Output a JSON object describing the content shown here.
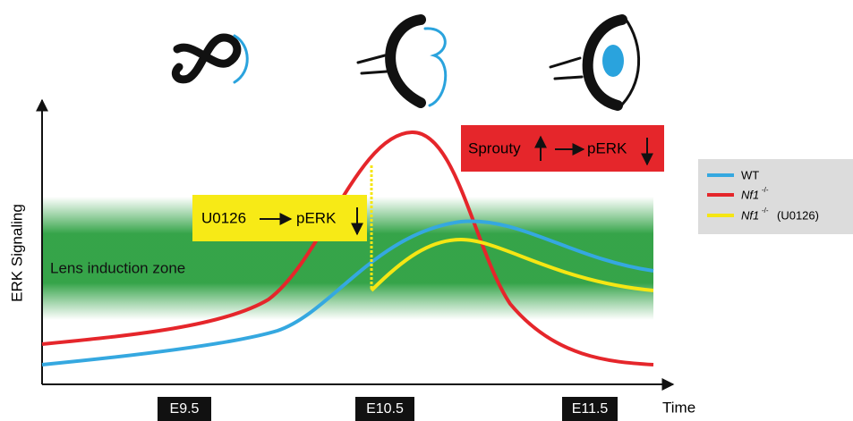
{
  "axes": {
    "y_label": "ERK Signaling",
    "x_label": "Time",
    "x_stages": [
      "E9.5",
      "E10.5",
      "E11.5"
    ]
  },
  "zone_label": "Lens induction zone",
  "annotations": {
    "inhibitor": {
      "drug": "U0126",
      "target": "pERK"
    },
    "feedback": {
      "inducer": "Sprouty",
      "target": "pERK"
    }
  },
  "legend": [
    {
      "name": "WT"
    },
    {
      "name": "Nf1",
      "superscript": "-/-"
    },
    {
      "name": "Nf1",
      "superscript": "-/-",
      "suffix": "(U0126)"
    }
  ]
}
